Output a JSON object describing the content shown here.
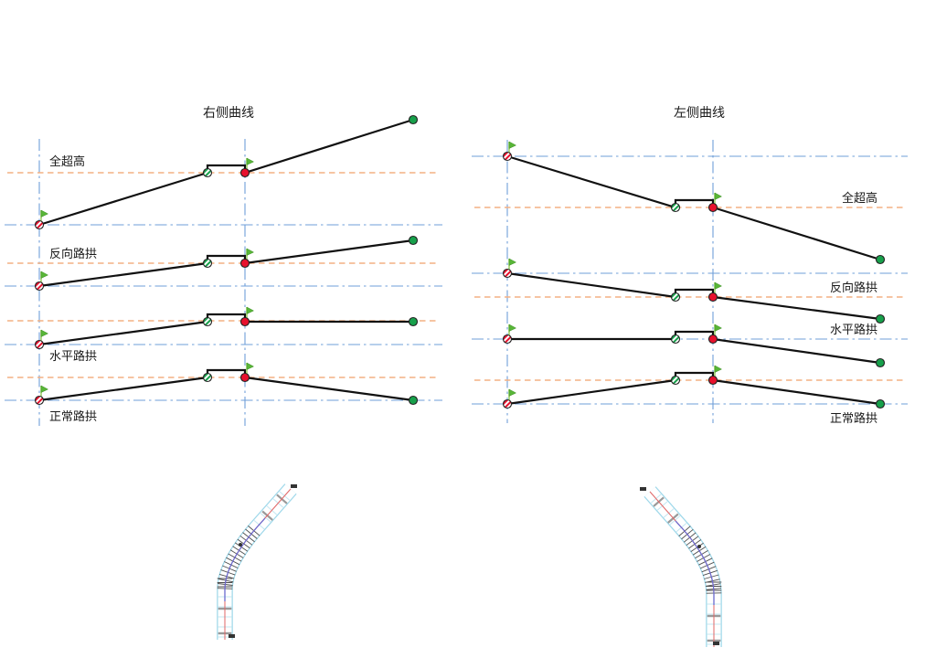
{
  "diagrams": [
    {
      "id": "right-curve",
      "title": "右侧曲线",
      "rows": [
        {
          "label": "全超高"
        },
        {
          "label": "反向路拱"
        },
        {
          "label": "水平路拱"
        },
        {
          "label": "正常路拱"
        }
      ]
    },
    {
      "id": "left-curve",
      "title": "左侧曲线",
      "rows": [
        {
          "label": "全超高"
        },
        {
          "label": "反向路拱"
        },
        {
          "label": "水平路拱"
        },
        {
          "label": "正常路拱"
        }
      ]
    }
  ],
  "markers": {
    "start_point": "red-striped-circle",
    "transition_point": "green-striped-circle",
    "key_point": "red-circle",
    "end_point": "green-circle",
    "station_flag": "green-flag"
  },
  "colors": {
    "axis_blue": "#6f9fd8",
    "superelevation_orange": "#f4b183",
    "profile_black": "#111111",
    "flag_green": "#58b637",
    "point_red": "#e8112d",
    "point_green": "#17a04b",
    "road_edge_cyan": "#9fd8ea",
    "road_centerline_red": "#e06666",
    "road_spiral_blue": "#6a6ad0",
    "road_tick_gray": "#4d4d4d"
  },
  "plan_views": [
    {
      "id": "right-curve-plan",
      "description": "curved-road-plan"
    },
    {
      "id": "left-curve-plan",
      "description": "curved-road-plan"
    }
  ]
}
